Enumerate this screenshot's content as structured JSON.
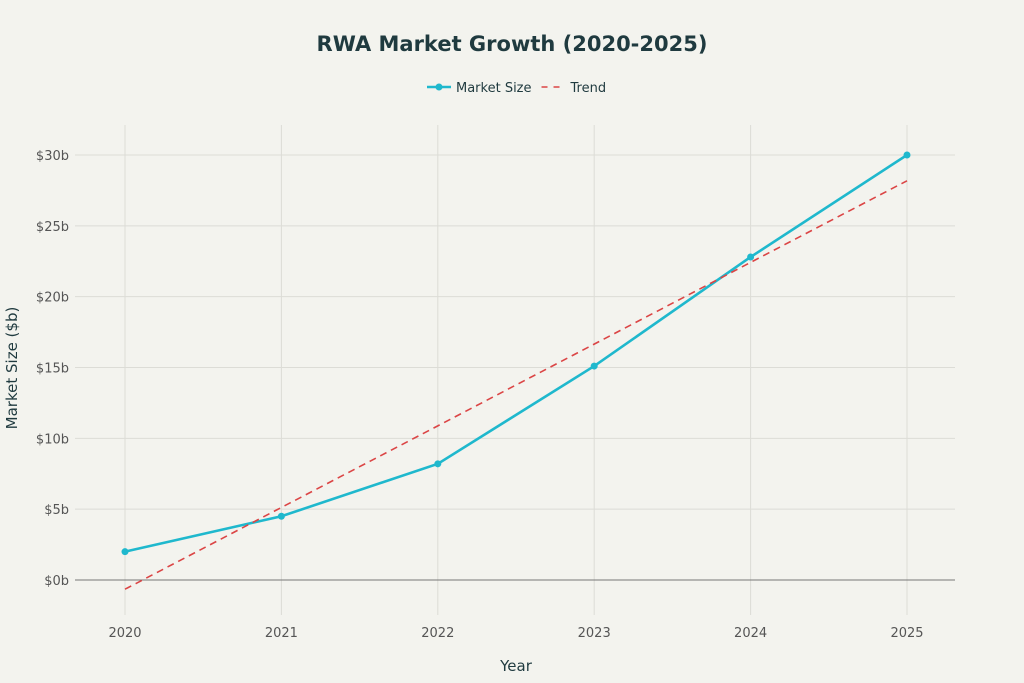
{
  "chart_data": {
    "type": "line",
    "title": "RWA Market Growth (2020-2025)",
    "xlabel": "Year",
    "ylabel": "Market Size ($b)",
    "x": [
      2020,
      2021,
      2022,
      2023,
      2024,
      2025
    ],
    "x_tick_labels": [
      "2020",
      "2021",
      "2022",
      "2023",
      "2024",
      "2025"
    ],
    "y_ticks": [
      0,
      5,
      10,
      15,
      20,
      25,
      30
    ],
    "y_tick_labels": [
      "$0b",
      "$5b",
      "$10b",
      "$15b",
      "$20b",
      "$25b",
      "$30b"
    ],
    "ylim": [
      -2.5,
      32
    ],
    "xlim": [
      2019.7,
      2025.3
    ],
    "grid": true,
    "legend_position": "top-center",
    "series": [
      {
        "name": "Market Size",
        "values": [
          2.0,
          4.5,
          8.2,
          15.1,
          22.8,
          30.0
        ],
        "color": "#1fb8cd",
        "style": "solid",
        "markers": true
      },
      {
        "name": "Trend",
        "values": [
          -0.65,
          5.12,
          10.88,
          16.65,
          22.42,
          28.18
        ],
        "color": "#db4545",
        "style": "dashed",
        "markers": false
      }
    ]
  }
}
